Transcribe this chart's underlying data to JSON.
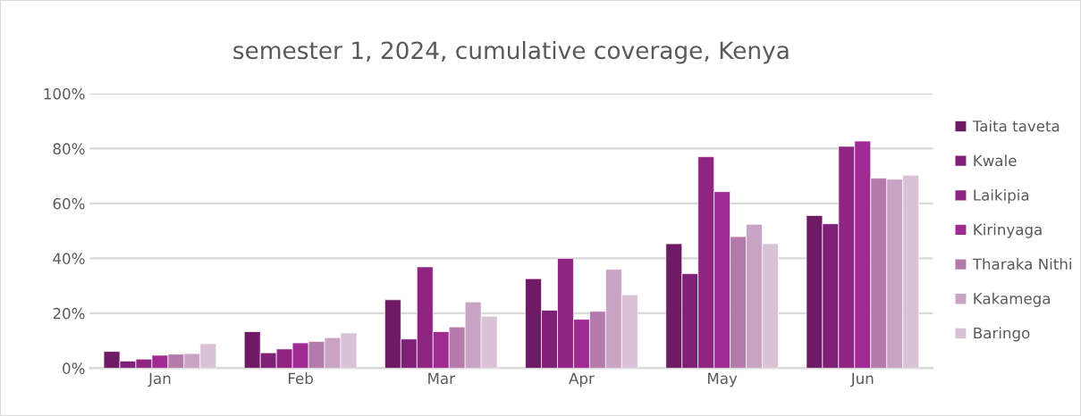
{
  "chart_data": {
    "type": "bar",
    "title": "semester 1, 2024, cumulative coverage, Kenya",
    "categories": [
      "Jan",
      "Feb",
      "Mar",
      "Apr",
      "May",
      "Jun"
    ],
    "series": [
      {
        "name": "Taita taveta",
        "color": "#6e1a64",
        "values": [
          6.1,
          13.3,
          24.9,
          32.6,
          45.3,
          55.6
        ]
      },
      {
        "name": "Kwale",
        "color": "#7f2077",
        "values": [
          2.6,
          5.6,
          10.6,
          21.1,
          34.4,
          52.6
        ]
      },
      {
        "name": "Laikipia",
        "color": "#902483",
        "values": [
          3.3,
          7,
          36.9,
          40,
          77,
          80.8
        ]
      },
      {
        "name": "Kirinyaga",
        "color": "#9e2a92",
        "values": [
          4.7,
          9.2,
          13.3,
          17.8,
          64.3,
          82.7
        ]
      },
      {
        "name": "Tharaka Nithi",
        "color": "#b47aab",
        "values": [
          5.1,
          9.7,
          15,
          20.7,
          47.9,
          69.2
        ]
      },
      {
        "name": "Kakamega",
        "color": "#c9a3c3",
        "values": [
          5.3,
          11.1,
          24.1,
          36,
          52.4,
          68.8
        ]
      },
      {
        "name": "Baringo",
        "color": "#d9c1d6",
        "values": [
          8.9,
          12.8,
          18.9,
          26.7,
          45.3,
          70.3
        ]
      }
    ],
    "ylim": [
      0,
      100
    ],
    "yticks": [
      {
        "value": 0,
        "label": "0%"
      },
      {
        "value": 20,
        "label": "20%"
      },
      {
        "value": 40,
        "label": "40%"
      },
      {
        "value": 60,
        "label": "60%"
      },
      {
        "value": 80,
        "label": "80%"
      },
      {
        "value": 100,
        "label": "100%"
      }
    ],
    "grid": "y",
    "legend": "right"
  }
}
